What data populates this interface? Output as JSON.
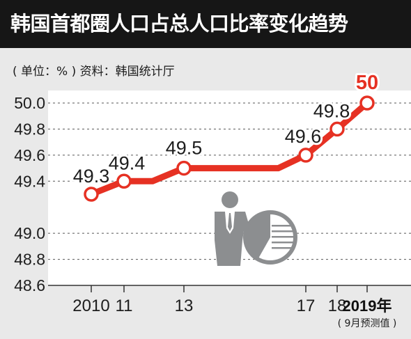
{
  "title": "韩国首都圈人口占总人口比率变化趋势",
  "subtitle": "( 单位：% ) 资料：韩国统计厅",
  "colors": {
    "title_bg": "#161616",
    "line": "#e63123",
    "highlight_text": "#e63123",
    "plot_bg": "#ffffff",
    "page_bg": "#e9e9e9",
    "icon": "#8c8e90"
  },
  "chart_data": {
    "type": "line",
    "title": "韩国首都圈人口占总人口比率变化趋势",
    "xlabel": "",
    "ylabel": "",
    "unit": "%",
    "source": "韩国统计厅",
    "x_tick_labels": [
      "2010",
      "11",
      "13",
      "17",
      "18",
      "2019年"
    ],
    "x_note": "( 9月预测值 )",
    "yticks": [
      "48.6",
      "48.8",
      "49.0",
      "49.4",
      "49.6",
      "49.8",
      "50.0"
    ],
    "ylim": [
      48.6,
      50.0
    ],
    "grid": "horizontal-dashed",
    "points": [
      {
        "x": 2010,
        "y": 49.3,
        "label": "49.3"
      },
      {
        "x": 2011,
        "y": 49.4,
        "label": "49.4"
      },
      {
        "x": 2013,
        "y": 49.5,
        "label": "49.5"
      },
      {
        "x": 2017,
        "y": 49.6,
        "label": "49.6"
      },
      {
        "x": 2018,
        "y": 49.8,
        "label": "49.8"
      },
      {
        "x": 2019,
        "y": 50.0,
        "label": "50"
      }
    ],
    "note": "the segments between labelled points are drawn flat at the plateau levels"
  },
  "icon": "person-presenting-pie-chart-icon"
}
